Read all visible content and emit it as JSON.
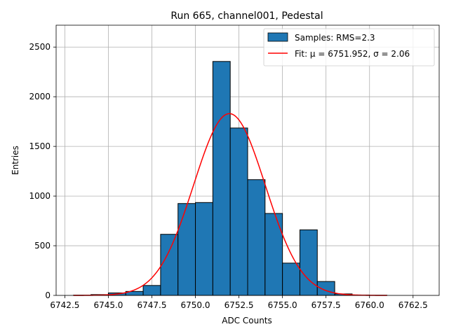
{
  "chart_data": {
    "type": "bar",
    "title": "Run 665, channel001, Pedestal",
    "xlabel": "ADC Counts",
    "ylabel": "Entries",
    "xlim": [
      6742.0,
      6764.0
    ],
    "ylim": [
      0,
      2720
    ],
    "grid": true,
    "legend_placement": "top-right",
    "x_ticks": [
      6742.5,
      6745.0,
      6747.5,
      6750.0,
      6752.5,
      6755.0,
      6757.5,
      6760.0,
      6762.5
    ],
    "x_tick_labels": [
      "6742.5",
      "6745.0",
      "6747.5",
      "6750.0",
      "6752.5",
      "6755.0",
      "6757.5",
      "6760.0",
      "6762.5"
    ],
    "y_ticks": [
      0,
      500,
      1000,
      1500,
      2000,
      2500
    ],
    "y_tick_labels": [
      "0",
      "500",
      "1000",
      "1500",
      "2000",
      "2500"
    ],
    "bin_edges": [
      6743,
      6744,
      6745,
      6746,
      6747,
      6748,
      6749,
      6750,
      6751,
      6752,
      6753,
      6754,
      6755,
      6756,
      6757,
      6758,
      6759,
      6760,
      6761
    ],
    "counts": [
      3,
      8,
      25,
      40,
      100,
      615,
      925,
      935,
      2355,
      1685,
      1165,
      825,
      325,
      660,
      140,
      15,
      4,
      2
    ],
    "bar_color": "#1f77b4",
    "fit": {
      "mu": 6751.952,
      "sigma": 2.06,
      "amplitude": 1830,
      "x_range": [
        6743,
        6761
      ],
      "color": "#ff0000"
    },
    "legend": [
      {
        "label": "Samples: RMS=2.3",
        "kind": "patch",
        "color": "#1f77b4"
      },
      {
        "label": "Fit: μ = 6751.952, σ = 2.06",
        "kind": "line",
        "color": "#ff0000"
      }
    ]
  }
}
